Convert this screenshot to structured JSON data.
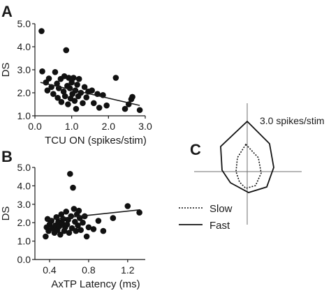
{
  "panels": {
    "a": "A",
    "b": "B",
    "c": "C"
  },
  "chart_data": [
    {
      "type": "scatter",
      "panel": "A",
      "xlabel": "TCU ON  (spikes/stim)",
      "ylabel": "DS",
      "xlim": [
        0.0,
        3.0
      ],
      "ylim": [
        1.0,
        5.0
      ],
      "x_ticks": [
        "0.0",
        "1.0",
        "2.0",
        "3.0"
      ],
      "y_ticks": [
        "1.0",
        "2.0",
        "3.0",
        "4.0",
        "5.0"
      ],
      "points": [
        [
          0.18,
          4.68
        ],
        [
          0.2,
          2.93
        ],
        [
          0.3,
          2.45
        ],
        [
          0.34,
          2.1
        ],
        [
          0.38,
          2.62
        ],
        [
          0.45,
          2.25
        ],
        [
          0.5,
          1.95
        ],
        [
          0.55,
          2.9
        ],
        [
          0.6,
          2.4
        ],
        [
          0.62,
          1.78
        ],
        [
          0.65,
          2.2
        ],
        [
          0.7,
          2.6
        ],
        [
          0.72,
          1.6
        ],
        [
          0.78,
          2.05
        ],
        [
          0.8,
          2.72
        ],
        [
          0.82,
          1.85
        ],
        [
          0.85,
          3.85
        ],
        [
          0.88,
          2.3
        ],
        [
          0.9,
          1.5
        ],
        [
          0.92,
          2.65
        ],
        [
          0.95,
          2.2
        ],
        [
          0.97,
          1.75
        ],
        [
          1.0,
          2.45
        ],
        [
          1.02,
          1.95
        ],
        [
          1.05,
          2.65
        ],
        [
          1.08,
          1.65
        ],
        [
          1.1,
          2.1
        ],
        [
          1.12,
          1.3
        ],
        [
          1.15,
          2.35
        ],
        [
          1.18,
          1.85
        ],
        [
          1.2,
          2.6
        ],
        [
          1.25,
          2.0
        ],
        [
          1.3,
          1.55
        ],
        [
          1.35,
          2.25
        ],
        [
          1.4,
          1.8
        ],
        [
          1.45,
          2.05
        ],
        [
          1.55,
          2.1
        ],
        [
          1.6,
          1.55
        ],
        [
          1.7,
          1.95
        ],
        [
          1.75,
          1.35
        ],
        [
          1.85,
          1.9
        ],
        [
          1.95,
          1.45
        ],
        [
          2.2,
          2.65
        ],
        [
          2.45,
          1.3
        ],
        [
          2.55,
          1.5
        ],
        [
          2.62,
          1.72
        ],
        [
          2.65,
          1.82
        ],
        [
          2.85,
          1.25
        ]
      ],
      "trendline": [
        [
          0.15,
          2.45
        ],
        [
          2.85,
          1.45
        ]
      ]
    },
    {
      "type": "scatter",
      "panel": "B",
      "xlabel": "AxTP Latency  (ms)",
      "ylabel": "DS",
      "xlim": [
        0.25,
        1.38
      ],
      "ylim": [
        0.0,
        5.0
      ],
      "x_ticks": [
        "0.4",
        "0.8",
        "1.2"
      ],
      "y_ticks": [
        "0.0",
        "1.0",
        "2.0",
        "3.0",
        "4.0",
        "5.0"
      ],
      "points": [
        [
          0.36,
          1.25
        ],
        [
          0.37,
          1.75
        ],
        [
          0.38,
          2.2
        ],
        [
          0.39,
          1.55
        ],
        [
          0.4,
          1.9
        ],
        [
          0.42,
          2.1
        ],
        [
          0.43,
          1.7
        ],
        [
          0.45,
          1.45
        ],
        [
          0.46,
          1.85
        ],
        [
          0.47,
          2.3
        ],
        [
          0.48,
          1.6
        ],
        [
          0.49,
          2.05
        ],
        [
          0.5,
          1.8
        ],
        [
          0.51,
          1.35
        ],
        [
          0.52,
          2.45
        ],
        [
          0.53,
          1.95
        ],
        [
          0.54,
          2.2
        ],
        [
          0.55,
          1.55
        ],
        [
          0.56,
          1.75
        ],
        [
          0.57,
          2.6
        ],
        [
          0.58,
          1.9
        ],
        [
          0.59,
          2.15
        ],
        [
          0.6,
          1.45
        ],
        [
          0.61,
          4.65
        ],
        [
          0.62,
          2.35
        ],
        [
          0.63,
          1.7
        ],
        [
          0.64,
          3.9
        ],
        [
          0.65,
          2.75
        ],
        [
          0.66,
          2.05
        ],
        [
          0.67,
          1.55
        ],
        [
          0.68,
          2.45
        ],
        [
          0.69,
          1.85
        ],
        [
          0.7,
          2.65
        ],
        [
          0.71,
          2.25
        ],
        [
          0.72,
          1.6
        ],
        [
          0.74,
          2.0
        ],
        [
          0.76,
          2.35
        ],
        [
          0.78,
          1.25
        ],
        [
          0.8,
          1.75
        ],
        [
          0.85,
          1.65
        ],
        [
          0.9,
          2.1
        ],
        [
          0.95,
          1.55
        ],
        [
          1.05,
          2.25
        ],
        [
          1.2,
          2.9
        ],
        [
          1.32,
          2.55
        ]
      ],
      "trendline": [
        [
          0.35,
          2.15
        ],
        [
          1.33,
          2.7
        ]
      ]
    }
  ],
  "polar": {
    "panel": "C",
    "scale_label": "3.0 spikes/stim",
    "legend": [
      {
        "label": "Slow",
        "style": "dotted"
      },
      {
        "label": "Fast",
        "style": "solid"
      }
    ]
  }
}
